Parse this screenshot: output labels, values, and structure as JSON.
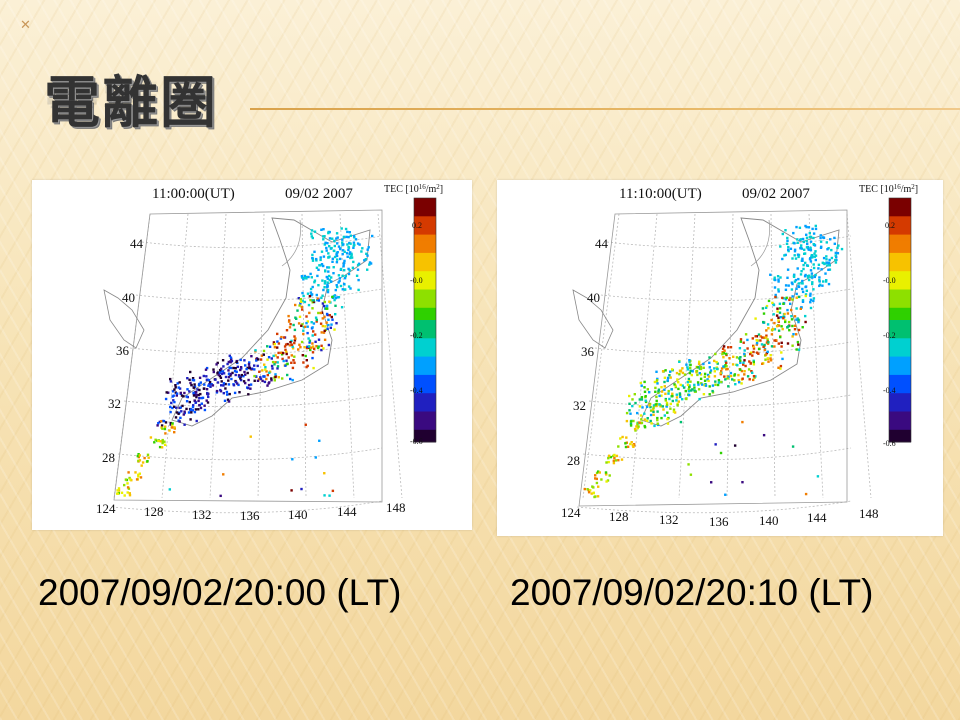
{
  "slide": {
    "title": "電離圏",
    "marker": "✕"
  },
  "panels": [
    {
      "header_time": "11:00:00(UT)",
      "header_date": "09/02 2007",
      "colorbar_title": "TEC [10",
      "colorbar_unit_exp": "16",
      "colorbar_unit_tail": "/m",
      "colorbar_unit_sq": "2",
      "colorbar_ticks": [
        "0.2",
        "-0.0",
        "-0.2",
        "-0.4",
        "-0.6"
      ],
      "lat_labels": [
        "44",
        "40",
        "36",
        "32",
        "28"
      ],
      "lon_labels": [
        "124",
        "128",
        "132",
        "136",
        "140",
        "144",
        "148"
      ],
      "caption": "2007/09/02/20:00 (LT)"
    },
    {
      "header_time": "11:10:00(UT)",
      "header_date": "09/02 2007",
      "colorbar_title": "TEC [10",
      "colorbar_unit_exp": "16",
      "colorbar_unit_tail": "/m",
      "colorbar_unit_sq": "2",
      "colorbar_ticks": [
        "0.2",
        "-0.0",
        "-0.2",
        "-0.4",
        "-0.6"
      ],
      "lat_labels": [
        "44",
        "40",
        "36",
        "32",
        "28"
      ],
      "lon_labels": [
        "124",
        "128",
        "132",
        "136",
        "140",
        "144",
        "148"
      ],
      "caption": "2007/09/02/20:10 (LT)"
    }
  ],
  "colors": {
    "scale": [
      "#7a0000",
      "#d43a00",
      "#f07d00",
      "#f7c200",
      "#e9f000",
      "#8ee000",
      "#2fd000",
      "#00c070",
      "#00d0d0",
      "#00a0ff",
      "#0050ff",
      "#2020c0",
      "#3a0a80",
      "#200030"
    ]
  }
}
